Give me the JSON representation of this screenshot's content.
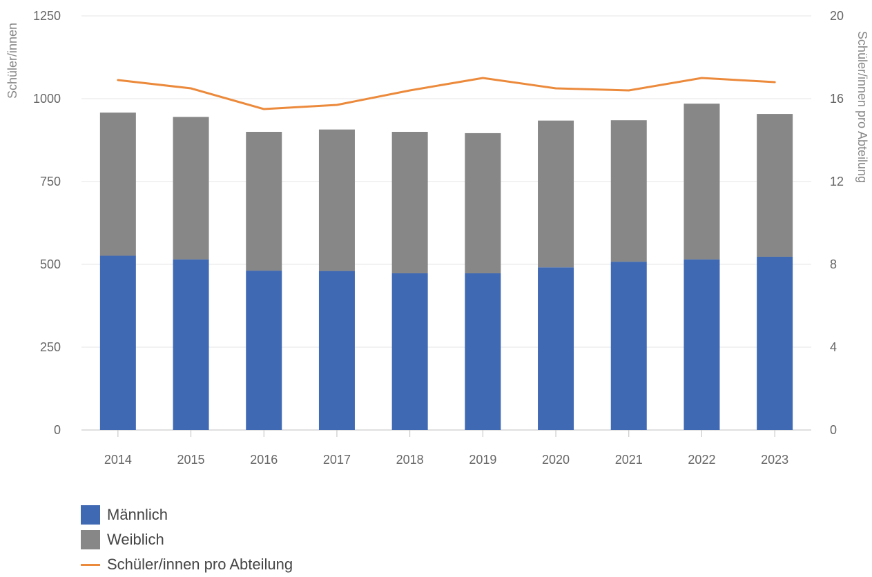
{
  "chart_data": {
    "type": "bar",
    "stacked": true,
    "categories": [
      "2014",
      "2015",
      "2016",
      "2017",
      "2018",
      "2019",
      "2020",
      "2021",
      "2022",
      "2023"
    ],
    "series": [
      {
        "name": "Männlich",
        "type": "bar",
        "axis": "left",
        "color": "#3f69b3",
        "values": [
          526,
          515,
          481,
          480,
          473,
          473,
          491,
          508,
          515,
          523
        ]
      },
      {
        "name": "Weiblich",
        "type": "bar",
        "axis": "left",
        "color": "#878787",
        "values": [
          432,
          430,
          419,
          427,
          427,
          423,
          443,
          427,
          470,
          431
        ]
      },
      {
        "name": "Schüler/innen pro Abteilung",
        "type": "line",
        "axis": "right",
        "color": "#ec8a3c",
        "values": [
          16.9,
          16.5,
          15.5,
          15.7,
          16.4,
          17.0,
          16.5,
          16.4,
          17.0,
          16.8
        ]
      }
    ],
    "y_left": {
      "label": "Schüler/innen",
      "range": [
        0,
        1250
      ],
      "ticks": [
        "0",
        "250",
        "500",
        "750",
        "1000",
        "1250"
      ]
    },
    "y_right": {
      "label": "Schüler/innen pro Abteilung",
      "range": [
        0,
        20
      ],
      "ticks": [
        "0",
        "4",
        "8",
        "12",
        "16",
        "20"
      ]
    },
    "grid": true,
    "legend_position": "bottom-left"
  },
  "legend": {
    "items": [
      {
        "label": "Männlich",
        "kind": "box",
        "color": "#3f69b3"
      },
      {
        "label": "Weiblich",
        "kind": "box",
        "color": "#878787"
      },
      {
        "label": "Schüler/innen pro Abteilung",
        "kind": "line",
        "color": "#ec8a3c"
      }
    ]
  }
}
